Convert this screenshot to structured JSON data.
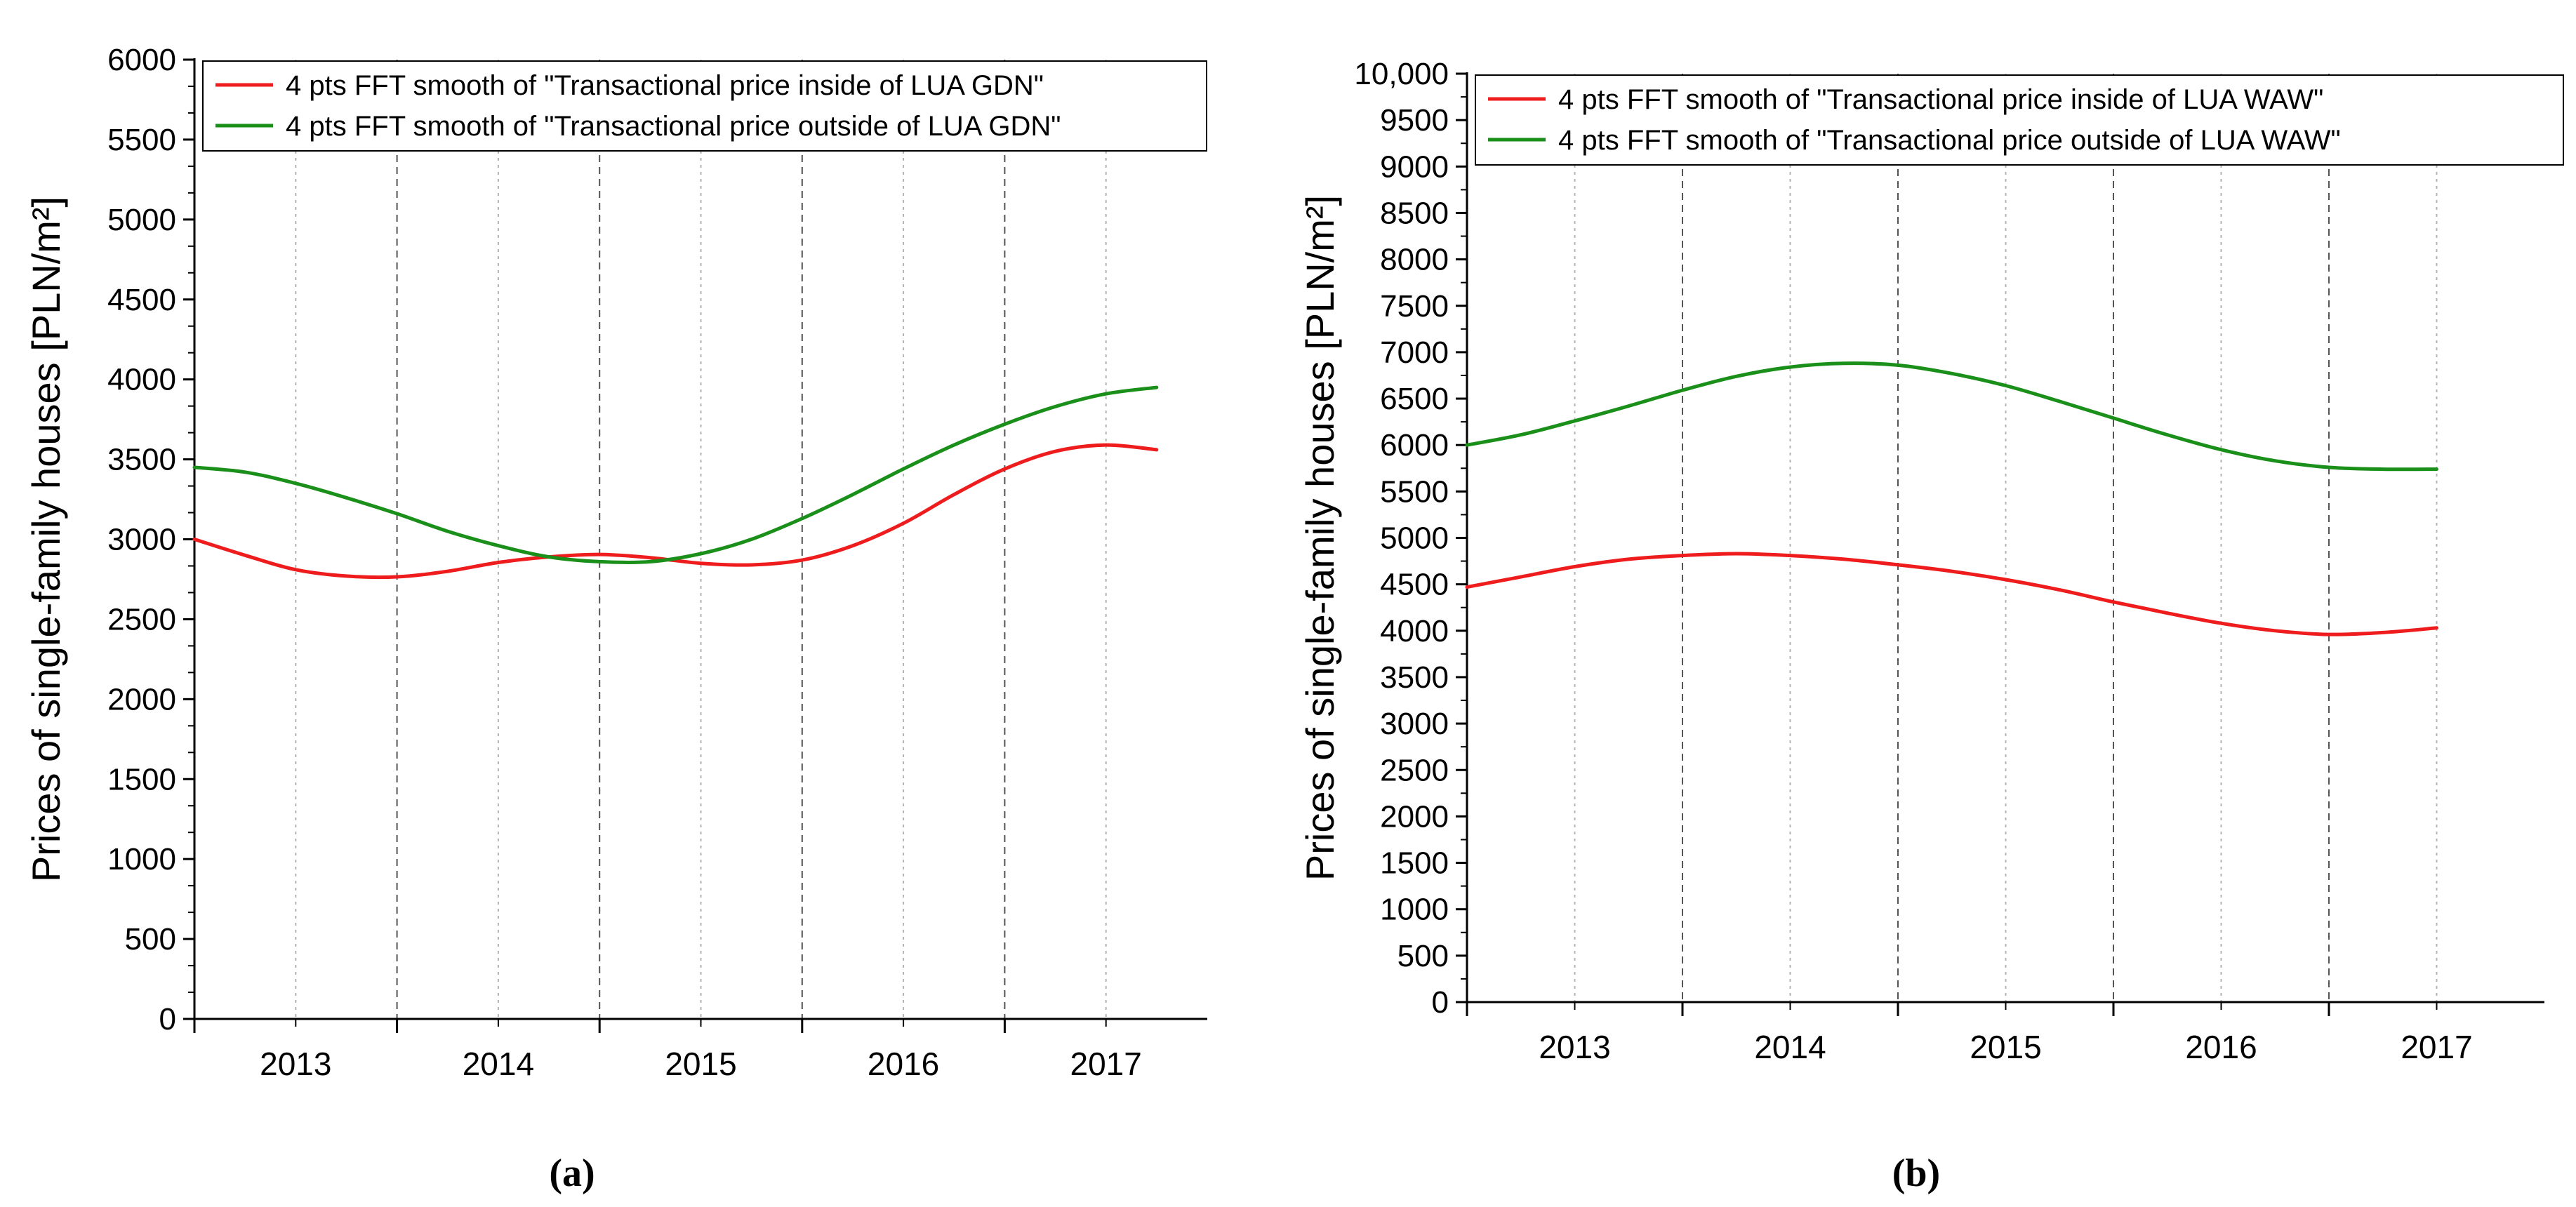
{
  "figure": {
    "caption_a": "(a)",
    "caption_b": "(b)"
  },
  "chart_data": [
    {
      "panel": "a",
      "type": "line",
      "title": "",
      "xlabel": "",
      "ylabel": "Prices of single-family houses [PLN/m²]",
      "ylim": [
        0,
        6000
      ],
      "y_major_step": 500,
      "y_tick_labels": [
        "0",
        "500",
        "1000",
        "1500",
        "2000",
        "2500",
        "3000",
        "3500",
        "4000",
        "4500",
        "5000",
        "5500",
        "6000"
      ],
      "xlim": [
        2012.5,
        2017.5
      ],
      "x_tick_values": [
        2013,
        2014,
        2015,
        2016,
        2017
      ],
      "x_tick_labels": [
        "2013",
        "2014",
        "2015",
        "2016",
        "2017"
      ],
      "x_boundary_lines": [
        2013.5,
        2014.5,
        2015.5,
        2016.5
      ],
      "legend_position": "top-left",
      "series": [
        {
          "name": "4 pts FFT smooth of \"Transactional price inside of LUA GDN\"",
          "color": "#ee1c1c",
          "x": [
            2012.5,
            2012.75,
            2013,
            2013.25,
            2013.5,
            2013.75,
            2014,
            2014.25,
            2014.5,
            2014.75,
            2015,
            2015.25,
            2015.5,
            2015.75,
            2016,
            2016.25,
            2016.5,
            2016.75,
            2017,
            2017.25
          ],
          "y": [
            3000,
            2900,
            2810,
            2770,
            2765,
            2800,
            2855,
            2890,
            2905,
            2885,
            2850,
            2840,
            2870,
            2960,
            3100,
            3280,
            3440,
            3550,
            3590,
            3560
          ]
        },
        {
          "name": "4 pts FFT smooth of \"Transactional price outside of LUA GDN\"",
          "color": "#1a8f1a",
          "x": [
            2012.5,
            2012.75,
            2013,
            2013.25,
            2013.5,
            2013.75,
            2014,
            2014.25,
            2014.5,
            2014.75,
            2015,
            2015.25,
            2015.5,
            2015.75,
            2016,
            2016.25,
            2016.5,
            2016.75,
            2017,
            2017.25
          ],
          "y": [
            3450,
            3420,
            3350,
            3260,
            3160,
            3050,
            2960,
            2890,
            2860,
            2860,
            2910,
            3000,
            3130,
            3280,
            3440,
            3590,
            3720,
            3830,
            3910,
            3950
          ]
        }
      ]
    },
    {
      "panel": "b",
      "type": "line",
      "title": "",
      "xlabel": "",
      "ylabel": "Prices of single-family houses [PLN/m²]",
      "ylim": [
        0,
        10000
      ],
      "y_major_step": 500,
      "y_tick_labels": [
        "0",
        "500",
        "1000",
        "1500",
        "2000",
        "2500",
        "3000",
        "3500",
        "4000",
        "4500",
        "5000",
        "5500",
        "6000",
        "6500",
        "7000",
        "7500",
        "8000",
        "8500",
        "9000",
        "9500",
        "10,000"
      ],
      "xlim": [
        2012.5,
        2017.5
      ],
      "x_tick_values": [
        2013,
        2014,
        2015,
        2016,
        2017
      ],
      "x_tick_labels": [
        "2013",
        "2014",
        "2015",
        "2016",
        "2017"
      ],
      "x_boundary_lines": [
        2013.5,
        2014.5,
        2015.5,
        2016.5
      ],
      "legend_position": "top-left",
      "series": [
        {
          "name": "4 pts FFT smooth of \"Transactional price inside of LUA WAW\"",
          "color": "#ee1c1c",
          "x": [
            2012.5,
            2012.75,
            2013,
            2013.25,
            2013.5,
            2013.75,
            2014,
            2014.25,
            2014.5,
            2014.75,
            2015,
            2015.25,
            2015.5,
            2015.75,
            2016,
            2016.25,
            2016.5,
            2016.75,
            2017
          ],
          "y": [
            4470,
            4580,
            4690,
            4770,
            4810,
            4830,
            4810,
            4770,
            4710,
            4640,
            4550,
            4440,
            4310,
            4190,
            4080,
            4000,
            3960,
            3980,
            4030
          ]
        },
        {
          "name": "4 pts FFT smooth of \"Transactional price outside of LUA WAW\"",
          "color": "#1a8f1a",
          "x": [
            2012.5,
            2012.75,
            2013,
            2013.25,
            2013.5,
            2013.75,
            2014,
            2014.25,
            2014.5,
            2014.75,
            2015,
            2015.25,
            2015.5,
            2015.75,
            2016,
            2016.25,
            2016.5,
            2016.75,
            2017
          ],
          "y": [
            6000,
            6110,
            6260,
            6420,
            6590,
            6740,
            6840,
            6880,
            6860,
            6770,
            6640,
            6470,
            6290,
            6110,
            5950,
            5830,
            5760,
            5740,
            5740
          ]
        }
      ]
    }
  ]
}
